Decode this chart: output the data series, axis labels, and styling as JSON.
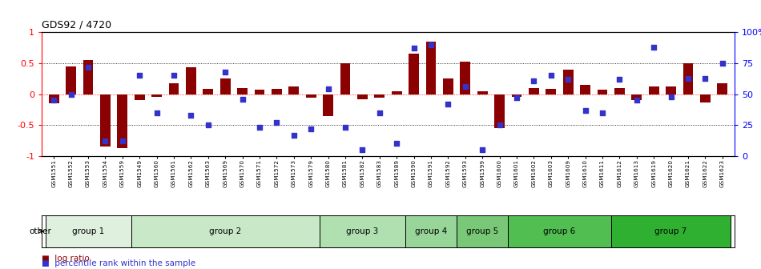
{
  "title": "GDS92 / 4720",
  "samples": [
    "GSM1551",
    "GSM1552",
    "GSM1553",
    "GSM1554",
    "GSM1559",
    "GSM1549",
    "GSM1560",
    "GSM1561",
    "GSM1562",
    "GSM1563",
    "GSM1569",
    "GSM1570",
    "GSM1571",
    "GSM1572",
    "GSM1573",
    "GSM1579",
    "GSM1580",
    "GSM1581",
    "GSM1582",
    "GSM1583",
    "GSM1589",
    "GSM1590",
    "GSM1591",
    "GSM1592",
    "GSM1593",
    "GSM1599",
    "GSM1600",
    "GSM1601",
    "GSM1602",
    "GSM1603",
    "GSM1609",
    "GSM1610",
    "GSM1611",
    "GSM1612",
    "GSM1613",
    "GSM1619",
    "GSM1620",
    "GSM1621",
    "GSM1622",
    "GSM1623"
  ],
  "log_ratio": [
    -0.15,
    0.45,
    0.55,
    -0.85,
    -0.87,
    -0.1,
    -0.05,
    0.18,
    0.44,
    0.08,
    0.25,
    0.1,
    0.07,
    0.08,
    0.13,
    -0.06,
    -0.35,
    0.5,
    -0.08,
    -0.06,
    0.05,
    0.65,
    0.85,
    0.25,
    0.52,
    0.05,
    -0.55,
    -0.05,
    0.1,
    0.08,
    0.4,
    0.15,
    0.07,
    0.1,
    -0.1,
    0.12,
    0.12,
    0.5,
    -0.14,
    0.18
  ],
  "percentile": [
    45,
    50,
    72,
    12,
    12,
    65,
    35,
    65,
    33,
    25,
    68,
    46,
    23,
    27,
    17,
    22,
    54,
    23,
    5,
    35,
    10,
    87,
    90,
    42,
    56,
    5,
    25,
    47,
    61,
    65,
    62,
    37,
    35,
    62,
    45,
    88,
    48,
    63,
    63,
    75
  ],
  "groups": [
    {
      "label": "group 1",
      "start": 0,
      "end": 5,
      "color": "#dff0df"
    },
    {
      "label": "group 2",
      "start": 5,
      "end": 16,
      "color": "#c8e8c8"
    },
    {
      "label": "group 3",
      "start": 16,
      "end": 21,
      "color": "#b0dfb0"
    },
    {
      "label": "group 4",
      "start": 21,
      "end": 24,
      "color": "#98d598"
    },
    {
      "label": "group 5",
      "start": 24,
      "end": 27,
      "color": "#78c878"
    },
    {
      "label": "group 6",
      "start": 27,
      "end": 33,
      "color": "#50be50"
    },
    {
      "label": "group 7",
      "start": 33,
      "end": 40,
      "color": "#30b030"
    }
  ],
  "bar_color": "#8b0000",
  "dot_color": "#3333cc",
  "ylim": [
    -1,
    1
  ],
  "left_yticks": [
    -1,
    -0.5,
    0,
    0.5,
    1
  ],
  "right_yticks": [
    0,
    25,
    50,
    75,
    100
  ],
  "right_yticklabels": [
    "0",
    "25",
    "50",
    "75",
    "100%"
  ],
  "hline_dotted": [
    -0.5,
    0,
    0.5
  ],
  "bg_color": "#ffffff"
}
